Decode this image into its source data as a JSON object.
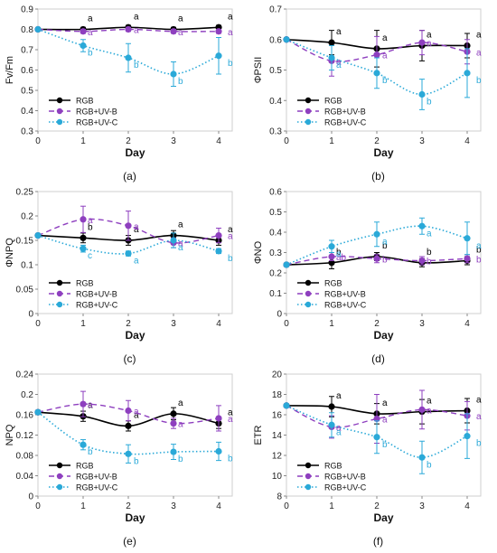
{
  "colors": {
    "RGB": "#000000",
    "RGB+UV-B": "#8e3fbf",
    "RGB+UV-C": "#2aa9d8"
  },
  "chart_data": [
    {
      "type": "line",
      "panel": "(a)",
      "xlabel": "Day",
      "ylabel": "Fv/Fm",
      "x": [
        0,
        1,
        2,
        3,
        4
      ],
      "xlim": [
        0,
        4.3
      ],
      "ylim": [
        0.3,
        0.9
      ],
      "xticks": [
        "0",
        "1",
        "2",
        "3",
        "4"
      ],
      "yticks": [
        "0.3",
        "0.4",
        "0.5",
        "0.6",
        "0.7",
        "0.8",
        "0.9"
      ],
      "legend": "bottom-left",
      "series": [
        {
          "name": "RGB",
          "values": [
            0.8,
            0.8,
            0.81,
            0.8,
            0.81
          ],
          "errors": [
            0,
            0.01,
            0.01,
            0.01,
            0.01
          ],
          "letters": [
            "",
            "a",
            "a",
            "a",
            "a"
          ]
        },
        {
          "name": "RGB+UV-B",
          "values": [
            0.8,
            0.79,
            0.8,
            0.79,
            0.79
          ],
          "errors": [
            0,
            0.01,
            0.01,
            0.01,
            0.01
          ],
          "letters": [
            "",
            "a",
            "a",
            "a",
            "a"
          ]
        },
        {
          "name": "RGB+UV-C",
          "values": [
            0.8,
            0.72,
            0.66,
            0.58,
            0.67
          ],
          "errors": [
            0,
            0.03,
            0.07,
            0.06,
            0.09
          ],
          "letters": [
            "",
            "b",
            "b",
            "b",
            "b"
          ]
        }
      ]
    },
    {
      "type": "line",
      "panel": "(b)",
      "xlabel": "Day",
      "ylabel": "ΦPSII",
      "x": [
        0,
        1,
        2,
        3,
        4
      ],
      "xlim": [
        0,
        4.3
      ],
      "ylim": [
        0.3,
        0.7
      ],
      "xticks": [
        "0",
        "1",
        "2",
        "3",
        "4"
      ],
      "yticks": [
        "0.3",
        "0.4",
        "0.5",
        "0.6",
        "0.7"
      ],
      "legend": "bottom-left",
      "series": [
        {
          "name": "RGB",
          "values": [
            0.6,
            0.59,
            0.57,
            0.58,
            0.58
          ],
          "errors": [
            0,
            0.04,
            0.06,
            0.05,
            0.04
          ],
          "letters": [
            "",
            "a",
            "a",
            "a",
            "a"
          ]
        },
        {
          "name": "RGB+UV-B",
          "values": [
            0.6,
            0.53,
            0.55,
            0.59,
            0.56
          ],
          "errors": [
            0,
            0.05,
            0.06,
            0.04,
            0.04
          ],
          "letters": [
            "",
            "a",
            "a",
            "a",
            "a"
          ]
        },
        {
          "name": "RGB+UV-C",
          "values": [
            0.6,
            0.54,
            0.49,
            0.42,
            0.49
          ],
          "errors": [
            0,
            0.04,
            0.05,
            0.05,
            0.08
          ],
          "letters": [
            "",
            "a",
            "b",
            "b",
            "b"
          ]
        }
      ]
    },
    {
      "type": "line",
      "panel": "(c)",
      "xlabel": "Day",
      "ylabel": "ΦNPQ",
      "x": [
        0,
        1,
        2,
        3,
        4
      ],
      "xlim": [
        0,
        4.3
      ],
      "ylim": [
        0,
        0.25
      ],
      "xticks": [
        "0",
        "1",
        "2",
        "3",
        "4"
      ],
      "yticks": [
        "0",
        "0.05",
        "0.1",
        "0.15",
        "0.2",
        "0.25"
      ],
      "legend": "bottom-left",
      "series": [
        {
          "name": "RGB",
          "values": [
            0.16,
            0.155,
            0.15,
            0.16,
            0.15
          ],
          "errors": [
            0,
            0.01,
            0.01,
            0.01,
            0.01
          ],
          "letters": [
            "",
            "b",
            "a",
            "a",
            "a"
          ]
        },
        {
          "name": "RGB+UV-B",
          "values": [
            0.16,
            0.193,
            0.18,
            0.145,
            0.16
          ],
          "errors": [
            0,
            0.027,
            0.03,
            0.01,
            0.015
          ],
          "letters": [
            "",
            "a",
            "a",
            "a",
            "a"
          ]
        },
        {
          "name": "RGB+UV-C",
          "values": [
            0.16,
            0.133,
            0.123,
            0.15,
            0.128
          ],
          "errors": [
            0,
            0.007,
            0.005,
            0.015,
            0.005
          ],
          "letters": [
            "",
            "c",
            "a",
            "a",
            "b"
          ]
        }
      ]
    },
    {
      "type": "line",
      "panel": "(d)",
      "xlabel": "Day",
      "ylabel": "ΦNO",
      "x": [
        0,
        1,
        2,
        3,
        4
      ],
      "xlim": [
        0,
        4.3
      ],
      "ylim": [
        0,
        0.6
      ],
      "xticks": [
        "0",
        "1",
        "2",
        "3",
        "4"
      ],
      "yticks": [
        "0",
        "0.1",
        "0.2",
        "0.3",
        "0.4",
        "0.5",
        "0.6"
      ],
      "legend": "bottom-left",
      "series": [
        {
          "name": "RGB",
          "values": [
            0.24,
            0.25,
            0.28,
            0.25,
            0.26
          ],
          "errors": [
            0,
            0.03,
            0.02,
            0.02,
            0.02
          ],
          "letters": [
            "",
            "b",
            "b",
            "b",
            "b"
          ]
        },
        {
          "name": "RGB+UV-B",
          "values": [
            0.24,
            0.28,
            0.27,
            0.26,
            0.27
          ],
          "errors": [
            0,
            0.02,
            0.02,
            0.02,
            0.02
          ],
          "letters": [
            "",
            "ab",
            "b",
            "b",
            "b"
          ]
        },
        {
          "name": "RGB+UV-C",
          "values": [
            0.24,
            0.33,
            0.39,
            0.43,
            0.37
          ],
          "errors": [
            0,
            0.03,
            0.06,
            0.04,
            0.08
          ],
          "letters": [
            "",
            "a",
            "a",
            "a",
            "a"
          ]
        }
      ]
    },
    {
      "type": "line",
      "panel": "(e)",
      "xlabel": "Day",
      "ylabel": "NPQ",
      "x": [
        0,
        1,
        2,
        3,
        4
      ],
      "xlim": [
        0,
        4.3
      ],
      "ylim": [
        0,
        0.24
      ],
      "xticks": [
        "0",
        "1",
        "2",
        "3",
        "4"
      ],
      "yticks": [
        "0",
        "0.04",
        "0.08",
        "0.12",
        "0.16",
        "0.2",
        "0.24"
      ],
      "legend": "bottom-left",
      "series": [
        {
          "name": "RGB",
          "values": [
            0.165,
            0.157,
            0.138,
            0.162,
            0.143
          ],
          "errors": [
            0,
            0.01,
            0.01,
            0.012,
            0.01
          ],
          "letters": [
            "",
            "a",
            "a",
            "a",
            "a"
          ]
        },
        {
          "name": "RGB+UV-B",
          "values": [
            0.165,
            0.181,
            0.168,
            0.143,
            0.153
          ],
          "errors": [
            0,
            0.025,
            0.02,
            0.01,
            0.025
          ],
          "letters": [
            "",
            "a",
            "a",
            "a",
            "a"
          ]
        },
        {
          "name": "RGB+UV-C",
          "values": [
            0.165,
            0.101,
            0.083,
            0.087,
            0.088
          ],
          "errors": [
            0,
            0.01,
            0.018,
            0.015,
            0.018
          ],
          "letters": [
            "",
            "b",
            "b",
            "b",
            "b"
          ]
        }
      ]
    },
    {
      "type": "line",
      "panel": "(f)",
      "xlabel": "Day",
      "ylabel": "ETR",
      "x": [
        0,
        1,
        2,
        3,
        4
      ],
      "xlim": [
        0,
        4.3
      ],
      "ylim": [
        8,
        20
      ],
      "xticks": [
        "0",
        "1",
        "2",
        "3",
        "4"
      ],
      "yticks": [
        "8",
        "10",
        "12",
        "14",
        "16",
        "18",
        "20"
      ],
      "legend": "bottom-left",
      "series": [
        {
          "name": "RGB",
          "values": [
            16.9,
            16.8,
            16.1,
            16.3,
            16.4
          ],
          "errors": [
            0,
            1.0,
            1.0,
            1.2,
            1.2
          ],
          "letters": [
            "",
            "a",
            "a",
            "a",
            "a"
          ]
        },
        {
          "name": "RGB+UV-B",
          "values": [
            16.9,
            14.8,
            15.6,
            16.5,
            15.9
          ],
          "errors": [
            0,
            1.1,
            2.4,
            1.9,
            1.4
          ],
          "letters": [
            "",
            "a",
            "a",
            "a",
            "a"
          ]
        },
        {
          "name": "RGB+UV-C",
          "values": [
            16.9,
            15.0,
            13.8,
            11.8,
            13.9
          ],
          "errors": [
            0,
            1.2,
            1.6,
            1.6,
            2.2
          ],
          "letters": [
            "",
            "a",
            "b",
            "b",
            "b"
          ]
        }
      ]
    }
  ]
}
